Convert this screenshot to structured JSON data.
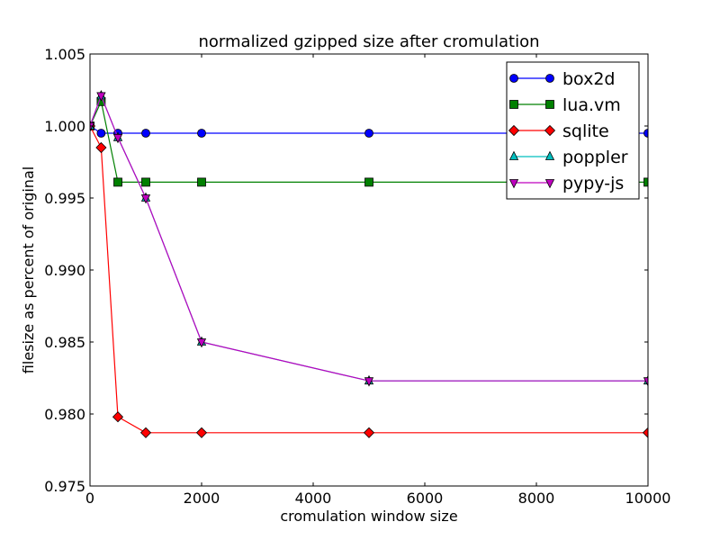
{
  "chart_data": {
    "type": "line",
    "title": "normalized gzipped size after cromulation",
    "xlabel": "cromulation window size",
    "ylabel": "filesize as percent of original",
    "xlim": [
      0,
      10000
    ],
    "ylim": [
      0.975,
      1.005
    ],
    "x_ticks": [
      "0",
      "2000",
      "4000",
      "6000",
      "8000",
      "10000"
    ],
    "y_ticks": [
      "0.975",
      "0.980",
      "0.985",
      "0.990",
      "0.995",
      "1.000",
      "1.005"
    ],
    "x_tick_values": [
      0,
      2000,
      4000,
      6000,
      8000,
      10000
    ],
    "y_tick_values": [
      0.975,
      0.98,
      0.985,
      0.99,
      0.995,
      1.0,
      1.005
    ],
    "grid": false,
    "legend_position": "top-right",
    "x": [
      0,
      200,
      500,
      1000,
      2000,
      5000,
      10000
    ],
    "series": [
      {
        "name": "box2d",
        "color": "#0000ff",
        "marker": "circle",
        "values": [
          1.0,
          0.9995,
          0.9995,
          0.9995,
          0.9995,
          0.9995,
          0.9995
        ]
      },
      {
        "name": "lua.vm",
        "color": "#008000",
        "marker": "square",
        "values": [
          1.0,
          1.0017,
          0.9961,
          0.9961,
          0.9961,
          0.9961,
          0.9961
        ]
      },
      {
        "name": "sqlite",
        "color": "#ff0000",
        "marker": "diamond",
        "values": [
          1.0,
          0.9985,
          0.9798,
          0.9787,
          0.9787,
          0.9787,
          0.9787
        ]
      },
      {
        "name": "poppler",
        "color": "#00bfbf",
        "marker": "triangle-up",
        "values": [
          1.0,
          1.0021,
          0.9992,
          0.995,
          0.985,
          0.9823,
          0.9823
        ]
      },
      {
        "name": "pypy-js",
        "color": "#bf00bf",
        "marker": "triangle-down",
        "values": [
          1.0,
          1.0021,
          0.9992,
          0.995,
          0.985,
          0.9823,
          0.9823
        ]
      }
    ]
  }
}
